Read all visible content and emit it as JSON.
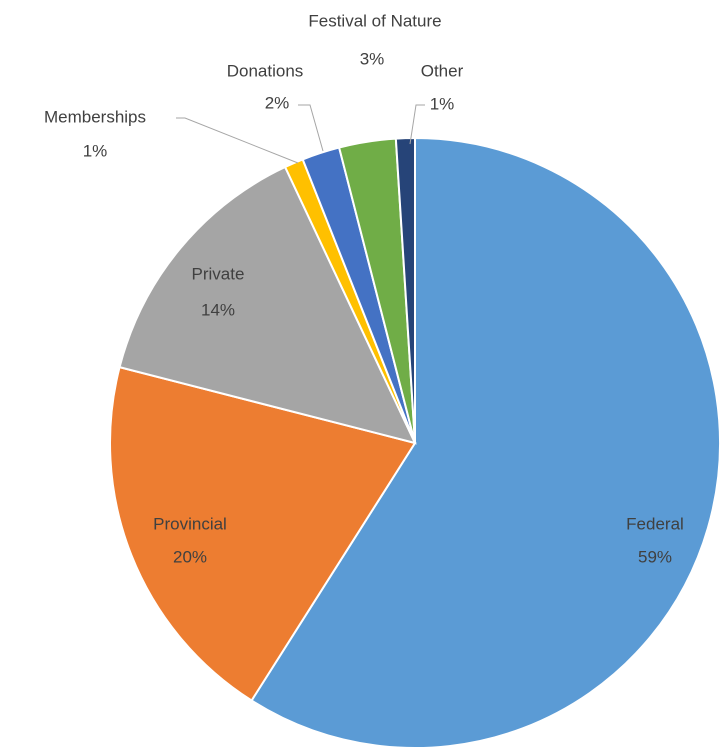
{
  "chart_data": {
    "type": "pie",
    "categories": [
      "Federal",
      "Provincial",
      "Private",
      "Memberships",
      "Donations",
      "Festival of Nature",
      "Other"
    ],
    "values": [
      59,
      20,
      14,
      1,
      2,
      3,
      1
    ],
    "value_labels": [
      "59%",
      "20%",
      "14%",
      "1%",
      "2%",
      "3%",
      "1%"
    ],
    "colors": [
      "#5b9bd5",
      "#ed7d31",
      "#a5a5a5",
      "#ffc000",
      "#4472c4",
      "#70ad47",
      "#264478"
    ]
  }
}
